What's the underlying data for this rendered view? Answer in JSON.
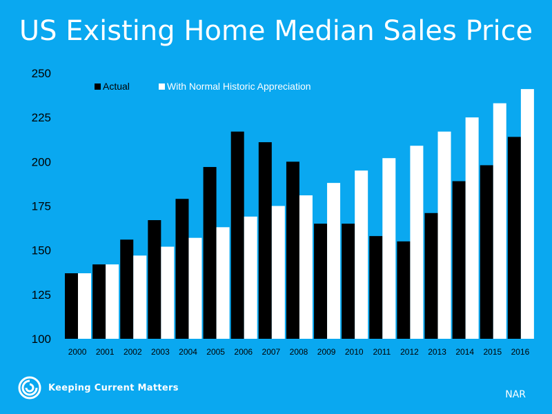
{
  "title": "US Existing Home Median Sales Price",
  "brand": {
    "name": "Keeping Current Matters",
    "logo_icon": "swirl-logo-icon"
  },
  "source": "NAR",
  "colors": {
    "background": "#0aa8f0",
    "actual": "#000000",
    "historic": "#ffffff",
    "text": "#ffffff"
  },
  "chart_data": {
    "type": "bar",
    "title": "US Existing Home Median Sales Price",
    "xlabel": "",
    "ylabel": "",
    "ylim": [
      100,
      250
    ],
    "yticks": [
      100,
      125,
      150,
      175,
      200,
      225,
      250
    ],
    "grid": false,
    "legend_position": "top-left",
    "categories": [
      "2000",
      "2001",
      "2002",
      "2003",
      "2004",
      "2005",
      "2006",
      "2007",
      "2008",
      "2009",
      "2010",
      "2011",
      "2012",
      "2013",
      "2014",
      "2015",
      "2016"
    ],
    "series": [
      {
        "name": "Actual",
        "color": "#000000",
        "values": [
          137,
          142,
          156,
          167,
          179,
          197,
          217,
          211,
          200,
          165,
          165,
          158,
          155,
          171,
          189,
          198,
          214
        ]
      },
      {
        "name": "With Normal Historic Appreciation",
        "color": "#ffffff",
        "values": [
          137,
          142,
          147,
          152,
          157,
          163,
          169,
          175,
          181,
          188,
          195,
          202,
          209,
          217,
          225,
          233,
          241
        ]
      }
    ]
  }
}
